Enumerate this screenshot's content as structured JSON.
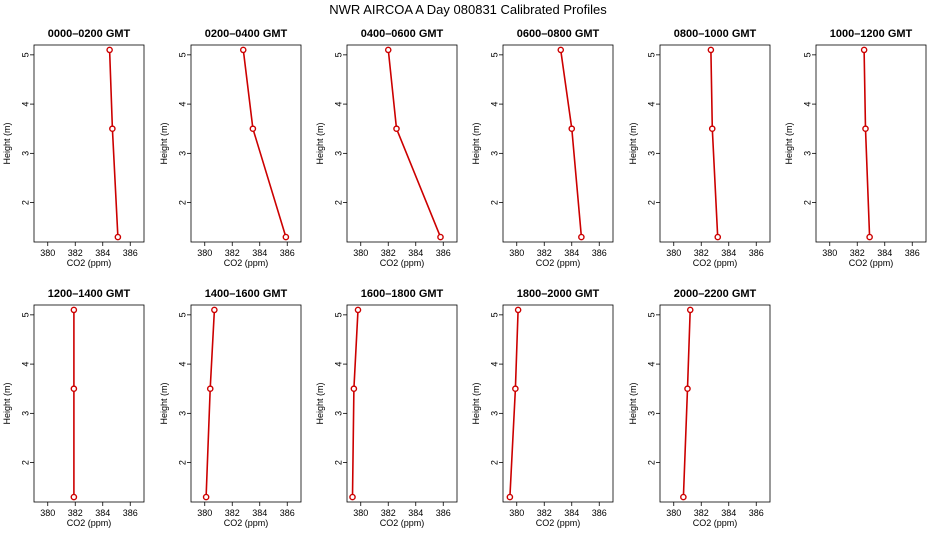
{
  "title": "NWR AIRCOA A  Day 080831  Calibrated Profiles",
  "chart_data": [
    {
      "type": "line",
      "title": "0000–0200 GMT",
      "xlabel": "CO2 (ppm)",
      "ylabel": "Height (m)",
      "xlim": [
        379,
        387
      ],
      "ylim": [
        1.2,
        5.2
      ],
      "xticks": [
        "380",
        "382",
        "384",
        "386"
      ],
      "yticks": [
        "2",
        "3",
        "4",
        "5"
      ],
      "x": [
        384.5,
        384.7,
        385.1
      ],
      "y": [
        5.1,
        3.5,
        1.3
      ],
      "color": "#cc0000"
    },
    {
      "type": "line",
      "title": "0200–0400 GMT",
      "xlabel": "CO2 (ppm)",
      "ylabel": "Height (m)",
      "xlim": [
        379,
        387
      ],
      "ylim": [
        1.2,
        5.2
      ],
      "xticks": [
        "380",
        "382",
        "384",
        "386"
      ],
      "yticks": [
        "2",
        "3",
        "4",
        "5"
      ],
      "x": [
        382.8,
        383.5,
        385.9
      ],
      "y": [
        5.1,
        3.5,
        1.3
      ],
      "color": "#cc0000"
    },
    {
      "type": "line",
      "title": "0400–0600 GMT",
      "xlabel": "CO2 (ppm)",
      "ylabel": "Height (m)",
      "xlim": [
        379,
        387
      ],
      "ylim": [
        1.2,
        5.2
      ],
      "xticks": [
        "380",
        "382",
        "384",
        "386"
      ],
      "yticks": [
        "2",
        "3",
        "4",
        "5"
      ],
      "x": [
        382.0,
        382.6,
        385.8
      ],
      "y": [
        5.1,
        3.5,
        1.3
      ],
      "color": "#cc0000"
    },
    {
      "type": "line",
      "title": "0600–0800 GMT",
      "xlabel": "CO2 (ppm)",
      "ylabel": "Height (m)",
      "xlim": [
        379,
        387
      ],
      "ylim": [
        1.2,
        5.2
      ],
      "xticks": [
        "380",
        "382",
        "384",
        "386"
      ],
      "yticks": [
        "2",
        "3",
        "4",
        "5"
      ],
      "x": [
        383.2,
        384.0,
        384.7
      ],
      "y": [
        5.1,
        3.5,
        1.3
      ],
      "color": "#cc0000"
    },
    {
      "type": "line",
      "title": "0800–1000 GMT",
      "xlabel": "CO2 (ppm)",
      "ylabel": "Height (m)",
      "xlim": [
        379,
        387
      ],
      "ylim": [
        1.2,
        5.2
      ],
      "xticks": [
        "380",
        "382",
        "384",
        "386"
      ],
      "yticks": [
        "2",
        "3",
        "4",
        "5"
      ],
      "x": [
        382.7,
        382.8,
        383.2
      ],
      "y": [
        5.1,
        3.5,
        1.3
      ],
      "color": "#cc0000"
    },
    {
      "type": "line",
      "title": "1000–1200 GMT",
      "xlabel": "CO2 (ppm)",
      "ylabel": "Height (m)",
      "xlim": [
        379,
        387
      ],
      "ylim": [
        1.2,
        5.2
      ],
      "xticks": [
        "380",
        "382",
        "384",
        "386"
      ],
      "yticks": [
        "2",
        "3",
        "4",
        "5"
      ],
      "x": [
        382.5,
        382.6,
        382.9
      ],
      "y": [
        5.1,
        3.5,
        1.3
      ],
      "color": "#cc0000"
    },
    {
      "type": "line",
      "title": "1200–1400 GMT",
      "xlabel": "CO2 (ppm)",
      "ylabel": "Height (m)",
      "xlim": [
        379,
        387
      ],
      "ylim": [
        1.2,
        5.2
      ],
      "xticks": [
        "380",
        "382",
        "384",
        "386"
      ],
      "yticks": [
        "2",
        "3",
        "4",
        "5"
      ],
      "x": [
        381.9,
        381.9,
        381.9
      ],
      "y": [
        5.1,
        3.5,
        1.3
      ],
      "color": "#cc0000"
    },
    {
      "type": "line",
      "title": "1400–1600 GMT",
      "xlabel": "CO2 (ppm)",
      "ylabel": "Height (m)",
      "xlim": [
        379,
        387
      ],
      "ylim": [
        1.2,
        5.2
      ],
      "xticks": [
        "380",
        "382",
        "384",
        "386"
      ],
      "yticks": [
        "2",
        "3",
        "4",
        "5"
      ],
      "x": [
        380.7,
        380.4,
        380.1
      ],
      "y": [
        5.1,
        3.5,
        1.3
      ],
      "color": "#cc0000"
    },
    {
      "type": "line",
      "title": "1600–1800 GMT",
      "xlabel": "CO2 (ppm)",
      "ylabel": "Height (m)",
      "xlim": [
        379,
        387
      ],
      "ylim": [
        1.2,
        5.2
      ],
      "xticks": [
        "380",
        "382",
        "384",
        "386"
      ],
      "yticks": [
        "2",
        "3",
        "4",
        "5"
      ],
      "x": [
        379.8,
        379.5,
        379.4
      ],
      "y": [
        5.1,
        3.5,
        1.3
      ],
      "color": "#cc0000"
    },
    {
      "type": "line",
      "title": "1800–2000 GMT",
      "xlabel": "CO2 (ppm)",
      "ylabel": "Height (m)",
      "xlim": [
        379,
        387
      ],
      "ylim": [
        1.2,
        5.2
      ],
      "xticks": [
        "380",
        "382",
        "384",
        "386"
      ],
      "yticks": [
        "2",
        "3",
        "4",
        "5"
      ],
      "x": [
        380.1,
        379.9,
        379.5
      ],
      "y": [
        5.1,
        3.5,
        1.3
      ],
      "color": "#cc0000"
    },
    {
      "type": "line",
      "title": "2000–2200 GMT",
      "xlabel": "CO2 (ppm)",
      "ylabel": "Height (m)",
      "xlim": [
        379,
        387
      ],
      "ylim": [
        1.2,
        5.2
      ],
      "xticks": [
        "380",
        "382",
        "384",
        "386"
      ],
      "yticks": [
        "2",
        "3",
        "4",
        "5"
      ],
      "x": [
        381.2,
        381.0,
        380.7
      ],
      "y": [
        5.1,
        3.5,
        1.3
      ],
      "color": "#cc0000"
    }
  ]
}
